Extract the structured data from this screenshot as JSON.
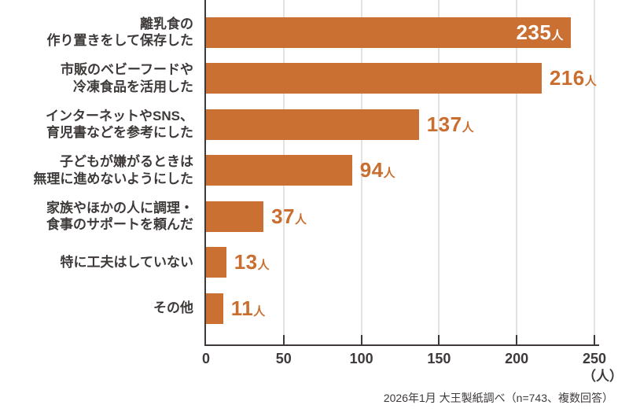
{
  "colors": {
    "bar": "#cb7033",
    "value_inside_text": "#ffffff",
    "value_outside_text": "#c96e2f",
    "axis": "#3e3a39",
    "grid": "#e4e2e0",
    "text": "#3e3a39"
  },
  "chart_data": {
    "type": "bar",
    "orientation": "horizontal",
    "categories": [
      "離乳食の 作り置きをして保存した",
      "市販のベビーフードや 冷凍食品を活用した",
      "インターネットやSNS、 育児書などを参考にした",
      "子どもが嫌がるときは 無理に進めないようにした",
      "家族やほかの人に調理・ 食事のサポートを頼んだ",
      "特に工夫はしていない",
      "その他"
    ],
    "category_lines": [
      [
        "離乳食の",
        "作り置きをして保存した"
      ],
      [
        "市販のベビーフードや",
        "冷凍食品を活用した"
      ],
      [
        "インターネットやSNS、",
        "育児書などを参考にした"
      ],
      [
        "子どもが嫌がるときは",
        "無理に進めないようにした"
      ],
      [
        "家族やほかの人に調理・",
        "食事のサポートを頼んだ"
      ],
      [
        "特に工夫はしていない"
      ],
      [
        "その他"
      ]
    ],
    "values": [
      235,
      216,
      137,
      94,
      37,
      13,
      11
    ],
    "value_suffix": "人",
    "value_label_inside": [
      true,
      false,
      false,
      false,
      false,
      false,
      false
    ],
    "xlim": [
      0,
      250
    ],
    "xticks": [
      0,
      50,
      100,
      150,
      200,
      250
    ],
    "x_unit_label": "（人）",
    "grid": true,
    "legend": false,
    "title": ""
  },
  "footer": {
    "source_note": "2026年1月 大王製紙調べ（n=743、複数回答）"
  }
}
